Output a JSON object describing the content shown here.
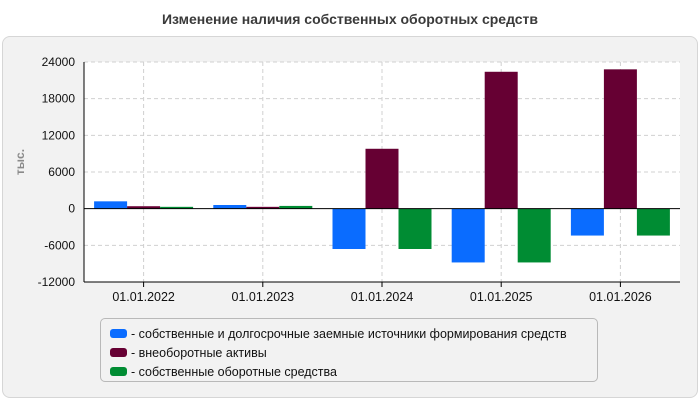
{
  "chart_data": {
    "type": "bar",
    "title": "Изменение наличия собственных оборотных средств",
    "ylabel": "тыс.",
    "ylim": [
      -12000,
      24000
    ],
    "yticks": [
      24000,
      18000,
      12000,
      6000,
      0,
      -6000,
      -12000
    ],
    "categories": [
      "01.01.2022",
      "01.01.2023",
      "01.01.2024",
      "01.01.2025",
      "01.01.2026"
    ],
    "grid": true,
    "legend_position": "bottom",
    "series": [
      {
        "name": "собственные и долгосрочные заемные источники формирования средств",
        "color": "#0a6cff",
        "values": [
          1200,
          600,
          -6600,
          -8800,
          -4400
        ]
      },
      {
        "name": "внеоборотные активы",
        "color": "#660033",
        "values": [
          400,
          300,
          9800,
          22400,
          22800
        ]
      },
      {
        "name": "собственные оборотные средства",
        "color": "#008c33",
        "values": [
          300,
          450,
          -6600,
          -8800,
          -4400
        ]
      }
    ]
  },
  "legend": {
    "items": [
      "- собственные и долгосрочные заемные источники формирования средств",
      "- внеоборотные активы",
      "- собственные оборотные средства"
    ]
  }
}
